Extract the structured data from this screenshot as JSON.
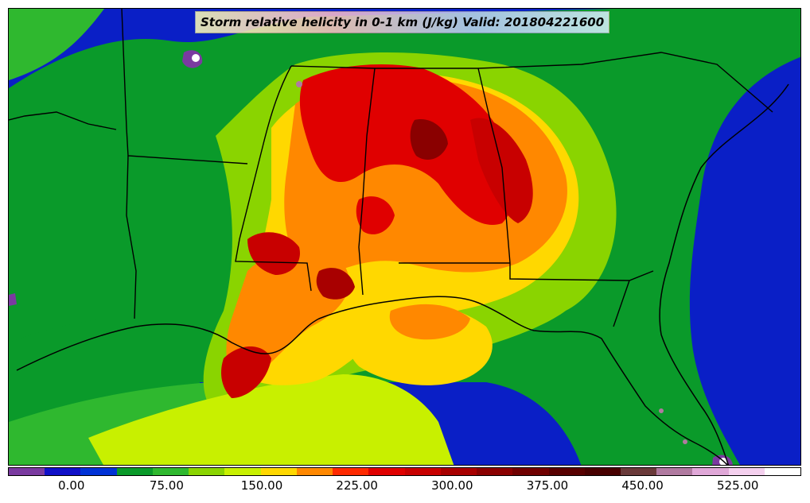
{
  "title": "Storm relative helicity in 0-1 km (J/kg) Valid: 201804221600",
  "colorbar": {
    "colors": [
      "#7a3aa0",
      "#1010c8",
      "#0032d6",
      "#0a9a2a",
      "#2fb82f",
      "#8ad400",
      "#c8f000",
      "#ffd800",
      "#ff8800",
      "#ff2a00",
      "#e00000",
      "#c80000",
      "#a80000",
      "#8a0000",
      "#700000",
      "#580000",
      "#480000",
      "#6a3a3a",
      "#b07aa0",
      "#e0a8d8",
      "#f4d0ee",
      "#ffffff"
    ],
    "tick_labels": [
      "0.00",
      "75.00",
      "150.00",
      "225.00",
      "300.00",
      "375.00",
      "450.00",
      "525.00"
    ],
    "tick_values": [
      0,
      75,
      150,
      225,
      300,
      375,
      450,
      525
    ],
    "range": [
      -50,
      575
    ]
  },
  "legend": {
    "ocean": "#0a1fc6",
    "low": "#0a9a2a",
    "mid": "#8ad400",
    "high": "#ffd800",
    "very_high": "#ff2a00",
    "extreme": "#a00000"
  }
}
